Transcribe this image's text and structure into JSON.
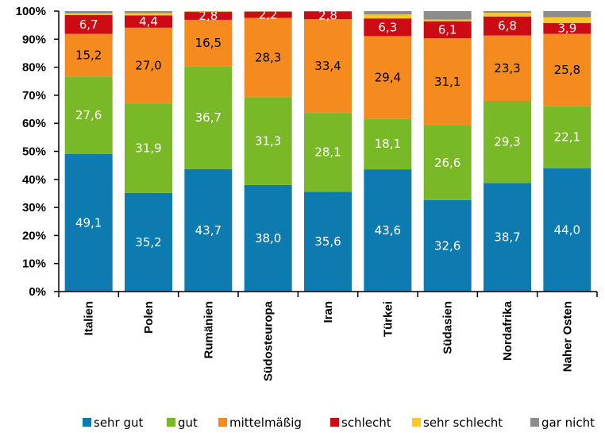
{
  "chart_data": {
    "type": "bar",
    "stacked": true,
    "categories": [
      "Italien",
      "Polen",
      "Rumänien",
      "Südosteuropa",
      "Iran",
      "Türkei",
      "Südasien",
      "Nordafrika",
      "Naher Osten"
    ],
    "y_ticks": [
      "0%",
      "10%",
      "20%",
      "30%",
      "40%",
      "50%",
      "60%",
      "70%",
      "80%",
      "90%",
      "100%"
    ],
    "ylim": [
      0,
      100
    ],
    "grid": false,
    "legend_position": "bottom",
    "series": [
      {
        "name": "sehr gut",
        "color": "#0e7bb0",
        "values": [
          49.1,
          35.2,
          43.7,
          38.0,
          35.6,
          43.6,
          32.6,
          38.7,
          44.0
        ],
        "labels": [
          "49,1",
          "35,2",
          "43,7",
          "38,0",
          "35,6",
          "43,6",
          "32,6",
          "38,7",
          "44,0"
        ]
      },
      {
        "name": "gut",
        "color": "#79b928",
        "values": [
          27.6,
          31.9,
          36.7,
          31.3,
          28.1,
          18.1,
          26.6,
          29.3,
          22.1
        ],
        "labels": [
          "27,6",
          "31,9",
          "36,7",
          "31,3",
          "28,1",
          "18,1",
          "26,6",
          "29,3",
          "22,1"
        ]
      },
      {
        "name": "mittelmäßig",
        "color": "#f58a1f",
        "values": [
          15.2,
          27.0,
          16.5,
          28.3,
          33.4,
          29.4,
          31.1,
          23.3,
          25.8
        ],
        "labels": [
          "15,2",
          "27,0",
          "16,5",
          "28,3",
          "33,4",
          "29,4",
          "31,1",
          "23,3",
          "25,8"
        ]
      },
      {
        "name": "schlecht",
        "color": "#cc0b14",
        "values": [
          6.7,
          4.4,
          2.8,
          2.2,
          2.8,
          6.3,
          6.1,
          6.8,
          3.9
        ],
        "labels": [
          "6,7",
          "4,4",
          "2,8",
          "2,2",
          "2,8",
          "6,3",
          "6,1",
          "6,8",
          "3,9"
        ]
      },
      {
        "name": "sehr schlecht",
        "color": "#fcc924",
        "values": [
          0.6,
          0.8,
          0.2,
          0.1,
          0.0,
          1.4,
          0.6,
          1.3,
          2.0
        ],
        "labels": []
      },
      {
        "name": "gar nicht",
        "color": "#8c8c8c",
        "values": [
          0.8,
          0.7,
          0.1,
          0.1,
          0.1,
          1.2,
          3.0,
          0.6,
          2.2
        ],
        "labels": []
      }
    ]
  }
}
